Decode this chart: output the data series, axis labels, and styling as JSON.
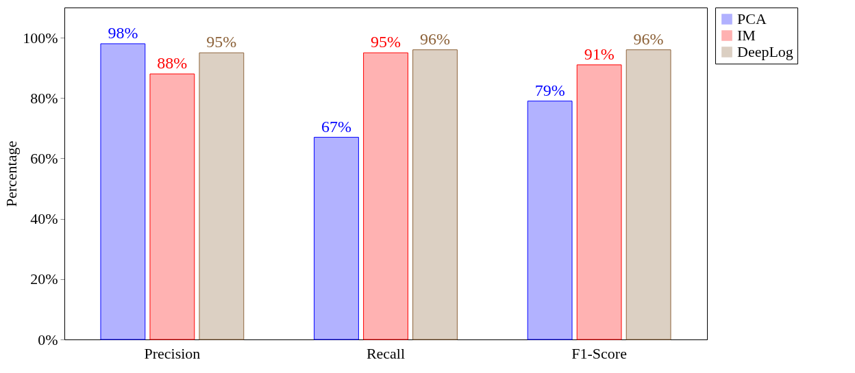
{
  "chart_data": {
    "type": "bar",
    "ylabel": "Percentage",
    "categories": [
      "Precision",
      "Recall",
      "F1-Score"
    ],
    "series": [
      {
        "name": "PCA",
        "color": "#0000ff",
        "values": [
          98,
          67,
          79
        ],
        "value_labels": [
          "98%",
          "67%",
          "79%"
        ]
      },
      {
        "name": "IM",
        "color": "#ff0000",
        "values": [
          88,
          95,
          91
        ],
        "value_labels": [
          "88%",
          "95%",
          "91%"
        ]
      },
      {
        "name": "DeepLog",
        "color": "#8c6239",
        "values": [
          95,
          96,
          96
        ],
        "value_labels": [
          "95%",
          "96%",
          "96%"
        ]
      }
    ],
    "ylim": [
      0,
      110
    ],
    "yticks": [
      {
        "value": 0,
        "label": "0%"
      },
      {
        "value": 20,
        "label": "20%"
      },
      {
        "value": 40,
        "label": "40%"
      },
      {
        "value": 60,
        "label": "60%"
      },
      {
        "value": 80,
        "label": "80%"
      },
      {
        "value": 100,
        "label": "100%"
      }
    ],
    "legend": "top right",
    "grid": false
  }
}
